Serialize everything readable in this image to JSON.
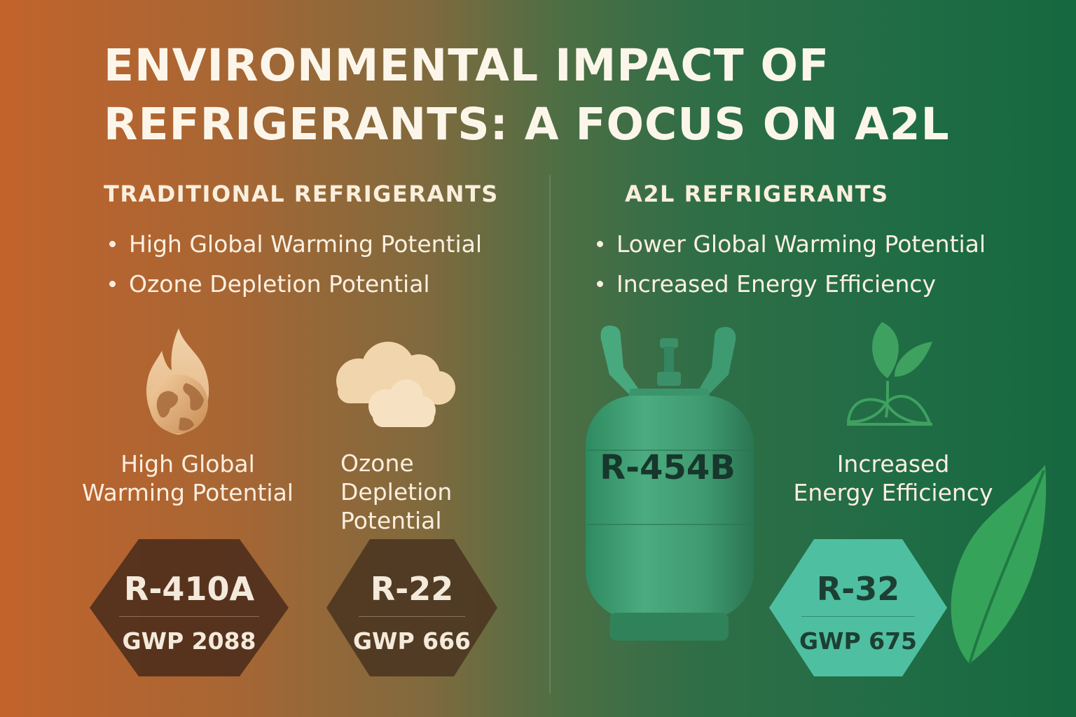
{
  "title_lines": [
    "ENVIRONMENTAL IMPACT OF",
    "REFRIGERANTS: A FOCUS ON A2L"
  ],
  "traditional": {
    "heading": "TRADITIONAL REFRIGERANTS",
    "bullets": [
      "High Global Warming Potential",
      "Ozone Depletion Potential"
    ],
    "icons": [
      {
        "icon": "burning-globe-icon",
        "caption": "High Global\nWarming Potential"
      },
      {
        "icon": "cloud-icon",
        "caption": "Ozone\nDepletion\nPotential"
      }
    ],
    "refrigerants": [
      {
        "name": "R-410A",
        "gwp": "GWP 2088"
      },
      {
        "name": "R-22",
        "gwp": "GWP 666"
      }
    ]
  },
  "a2l": {
    "heading": "A2L REFRIGERANTS",
    "bullets": [
      "Lower Global Warming Potential",
      "Increased Energy Efficiency"
    ],
    "tank_label": "R-454B",
    "icons": [
      {
        "icon": "sprout-icon",
        "caption": "Increased\nEnergy Efficiency"
      }
    ],
    "refrigerants": [
      {
        "name": "R-32",
        "gwp": "GWP 675"
      }
    ]
  },
  "colors": {
    "bg_left": "#c2632c",
    "bg_right": "#16683f",
    "dark_hex": "#4e2e1c",
    "teal_hex": "#4fbfa1",
    "tank": "#3f9a70"
  }
}
